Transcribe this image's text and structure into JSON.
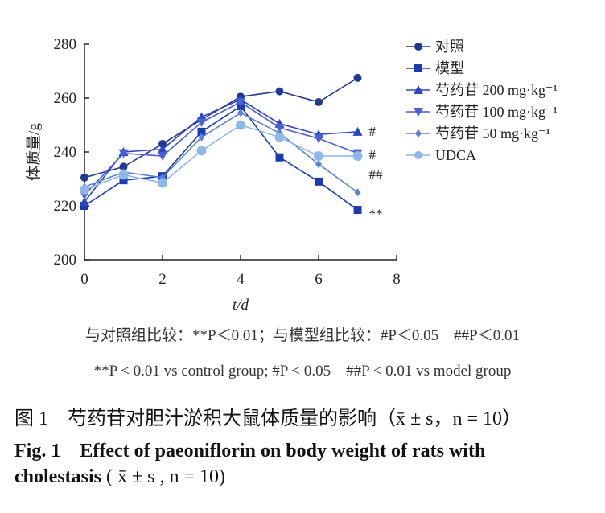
{
  "chart_data": {
    "type": "line",
    "ylabel": "体质量/g",
    "xlabel": "t/d",
    "xlim": [
      0,
      8
    ],
    "ylim": [
      200,
      280
    ],
    "xticks": [
      "0",
      "2",
      "4",
      "6",
      "8"
    ],
    "yticks": [
      "200",
      "220",
      "240",
      "260",
      "280"
    ],
    "legend_position": "top-right",
    "series": [
      {
        "name": "对照",
        "color": "#1f3a93",
        "marker": "circle",
        "x": [
          0,
          1,
          2,
          3,
          4,
          5,
          6,
          7
        ],
        "values": [
          230.5,
          234.5,
          243,
          252,
          260.5,
          262.5,
          258.5,
          267.5
        ]
      },
      {
        "name": "模型",
        "color": "#1a3cb0",
        "marker": "square",
        "x": [
          0,
          1,
          2,
          3,
          4,
          5,
          6,
          7
        ],
        "values": [
          220,
          229.5,
          231,
          247.5,
          257,
          238,
          229,
          218.5
        ]
      },
      {
        "name": "芍药苷 200 mg·kg⁻¹",
        "color": "#2c45c0",
        "marker": "triangle-up",
        "x": [
          0,
          1,
          2,
          3,
          4,
          5,
          6,
          7
        ],
        "values": [
          221.5,
          240,
          241,
          253,
          259.5,
          250.5,
          246.5,
          247.5
        ]
      },
      {
        "name": "芍药苷 100 mg·kg⁻¹",
        "color": "#4a5fd0",
        "marker": "triangle-down",
        "x": [
          0,
          1,
          2,
          3,
          4,
          5,
          6,
          7
        ],
        "values": [
          224,
          239.5,
          238.5,
          251,
          258.5,
          249,
          245,
          239.5
        ]
      },
      {
        "name": "芍药苷 50 mg·kg⁻¹",
        "color": "#5c82d4",
        "marker": "diamond",
        "x": [
          0,
          1,
          2,
          3,
          4,
          5,
          6,
          7
        ],
        "values": [
          227,
          232.5,
          230.5,
          245.5,
          254.5,
          247,
          235.5,
          225
        ]
      },
      {
        "name": "UDCA",
        "color": "#8fb8ea",
        "marker": "circle",
        "x": [
          0,
          1,
          2,
          3,
          4,
          5,
          6,
          7
        ],
        "values": [
          226,
          231.5,
          228.5,
          240.5,
          250,
          245.5,
          238.5,
          238.5
        ]
      }
    ],
    "annotations": [
      {
        "text": "#",
        "x": 7,
        "y": 248
      },
      {
        "text": "#",
        "x": 7,
        "y": 240
      },
      {
        "text": "##",
        "x": 7,
        "y": 236
      },
      {
        "text": "**",
        "x": 7,
        "y": 218
      }
    ]
  },
  "notes": {
    "cn": "与对照组比较：**P＜0.01；与模型组比较：#P＜0.05　##P＜0.01",
    "en": "**P < 0.01 vs control group; #P < 0.05　##P < 0.01 vs model group"
  },
  "caption": {
    "cn": "图 1　芍药苷对胆汁淤积大鼠体质量的影响（x̄ ± s，n = 10）",
    "en_line1": "Fig. 1　Effect of paeoniflorin on body weight of rats with",
    "en_line2_word": "cholestasis",
    "en_line2_stats": "( x̄ ± s , n = 10)"
  }
}
